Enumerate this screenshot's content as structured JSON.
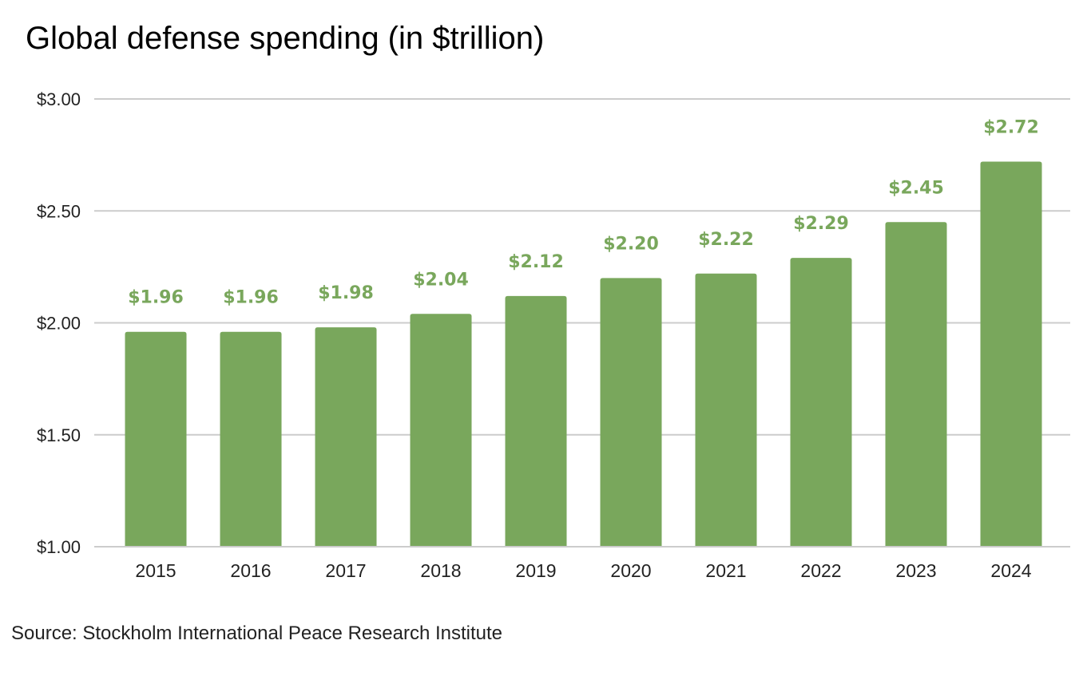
{
  "chart_data": {
    "type": "bar",
    "title": "Global defense spending (in $trillion)",
    "xlabel": "",
    "ylabel": "",
    "categories": [
      "2015",
      "2016",
      "2017",
      "2018",
      "2019",
      "2020",
      "2021",
      "2022",
      "2023",
      "2024"
    ],
    "values": [
      1.96,
      1.96,
      1.98,
      2.04,
      2.12,
      2.2,
      2.22,
      2.29,
      2.45,
      2.72
    ],
    "data_labels": [
      "$1.96",
      "$1.96",
      "$1.98",
      "$2.04",
      "$2.12",
      "$2.20",
      "$2.22",
      "$2.29",
      "$2.45",
      "$2.72"
    ],
    "ylim": [
      1.0,
      3.0
    ],
    "yticks": [
      1.0,
      1.5,
      2.0,
      2.5,
      3.0
    ],
    "ytick_labels": [
      "$1.00",
      "$1.50",
      "$2.00",
      "$2.50",
      "$3.00"
    ],
    "grid": true,
    "legend": "none",
    "bar_color": "#79a75c",
    "label_color": "#79a75c",
    "grid_color": "#cccccc",
    "source": "Source: Stockholm International Peace Research Institute"
  }
}
